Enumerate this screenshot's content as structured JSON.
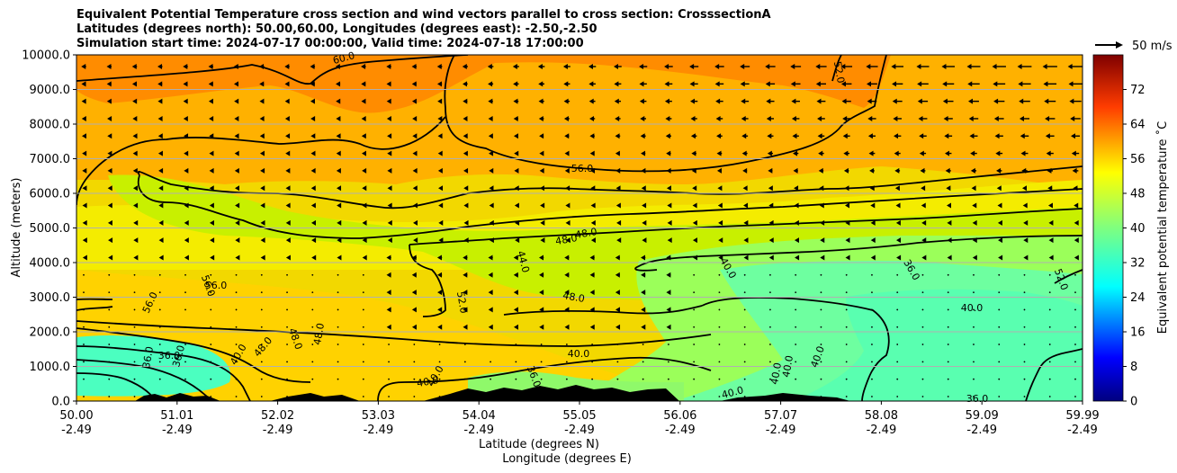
{
  "titles": [
    "Equivalent Potential Temperature cross section and wind vectors parallel to cross section: CrosssectionA",
    "Latitudes (degrees north): 50.00,60.00, Longitudes (degrees east): -2.50,-2.50",
    "Simulation start time: 2024-07-17 00:00:00, Valid time: 2024-07-18 17:00:00"
  ],
  "chart_data": {
    "type": "heatmap",
    "ylabel": "Altitude (meters)",
    "xlabel_1": "Latitude (degrees N)",
    "xlabel_2": "Longitude (degrees E)",
    "ylim": [
      0,
      10000
    ],
    "y_ticks": [
      0,
      1000,
      2000,
      3000,
      4000,
      5000,
      6000,
      7000,
      8000,
      9000,
      10000
    ],
    "y_tick_labels": [
      "0.0",
      "1000.0",
      "2000.0",
      "3000.0",
      "4000.0",
      "5000.0",
      "6000.0",
      "7000.0",
      "8000.0",
      "9000.0",
      "10000.0"
    ],
    "x_tick_lat": [
      "50.00",
      "51.01",
      "52.02",
      "53.03",
      "54.04",
      "55.05",
      "56.06",
      "57.07",
      "58.08",
      "59.09",
      "59.99"
    ],
    "x_tick_lon": [
      "-2.49",
      "-2.49",
      "-2.49",
      "-2.49",
      "-2.49",
      "-2.49",
      "-2.49",
      "-2.49",
      "-2.49",
      "-2.49",
      "-2.49"
    ],
    "grid": true,
    "colorbar": {
      "label": "Equivalent potential temperature ˚C",
      "range": [
        0,
        80
      ],
      "ticks": [
        0,
        8,
        16,
        24,
        32,
        40,
        48,
        56,
        64,
        72
      ]
    },
    "quiver_key_label": "50 m/s",
    "contour_labels": [
      "60.0",
      "56.0",
      "56.0",
      "56.0",
      "56.0",
      "52.0",
      "52.0",
      "52.0",
      "48.0",
      "48.0",
      "48.0",
      "48.0",
      "48.0",
      "48.0",
      "44.0",
      "40.0",
      "40.0",
      "40.0",
      "40.0",
      "40.0",
      "40.0",
      "40.0",
      "40.0",
      "40.0",
      "40.0",
      "36.0",
      "36.0",
      "36.0",
      "36.0",
      "36.0",
      "36.0"
    ]
  }
}
